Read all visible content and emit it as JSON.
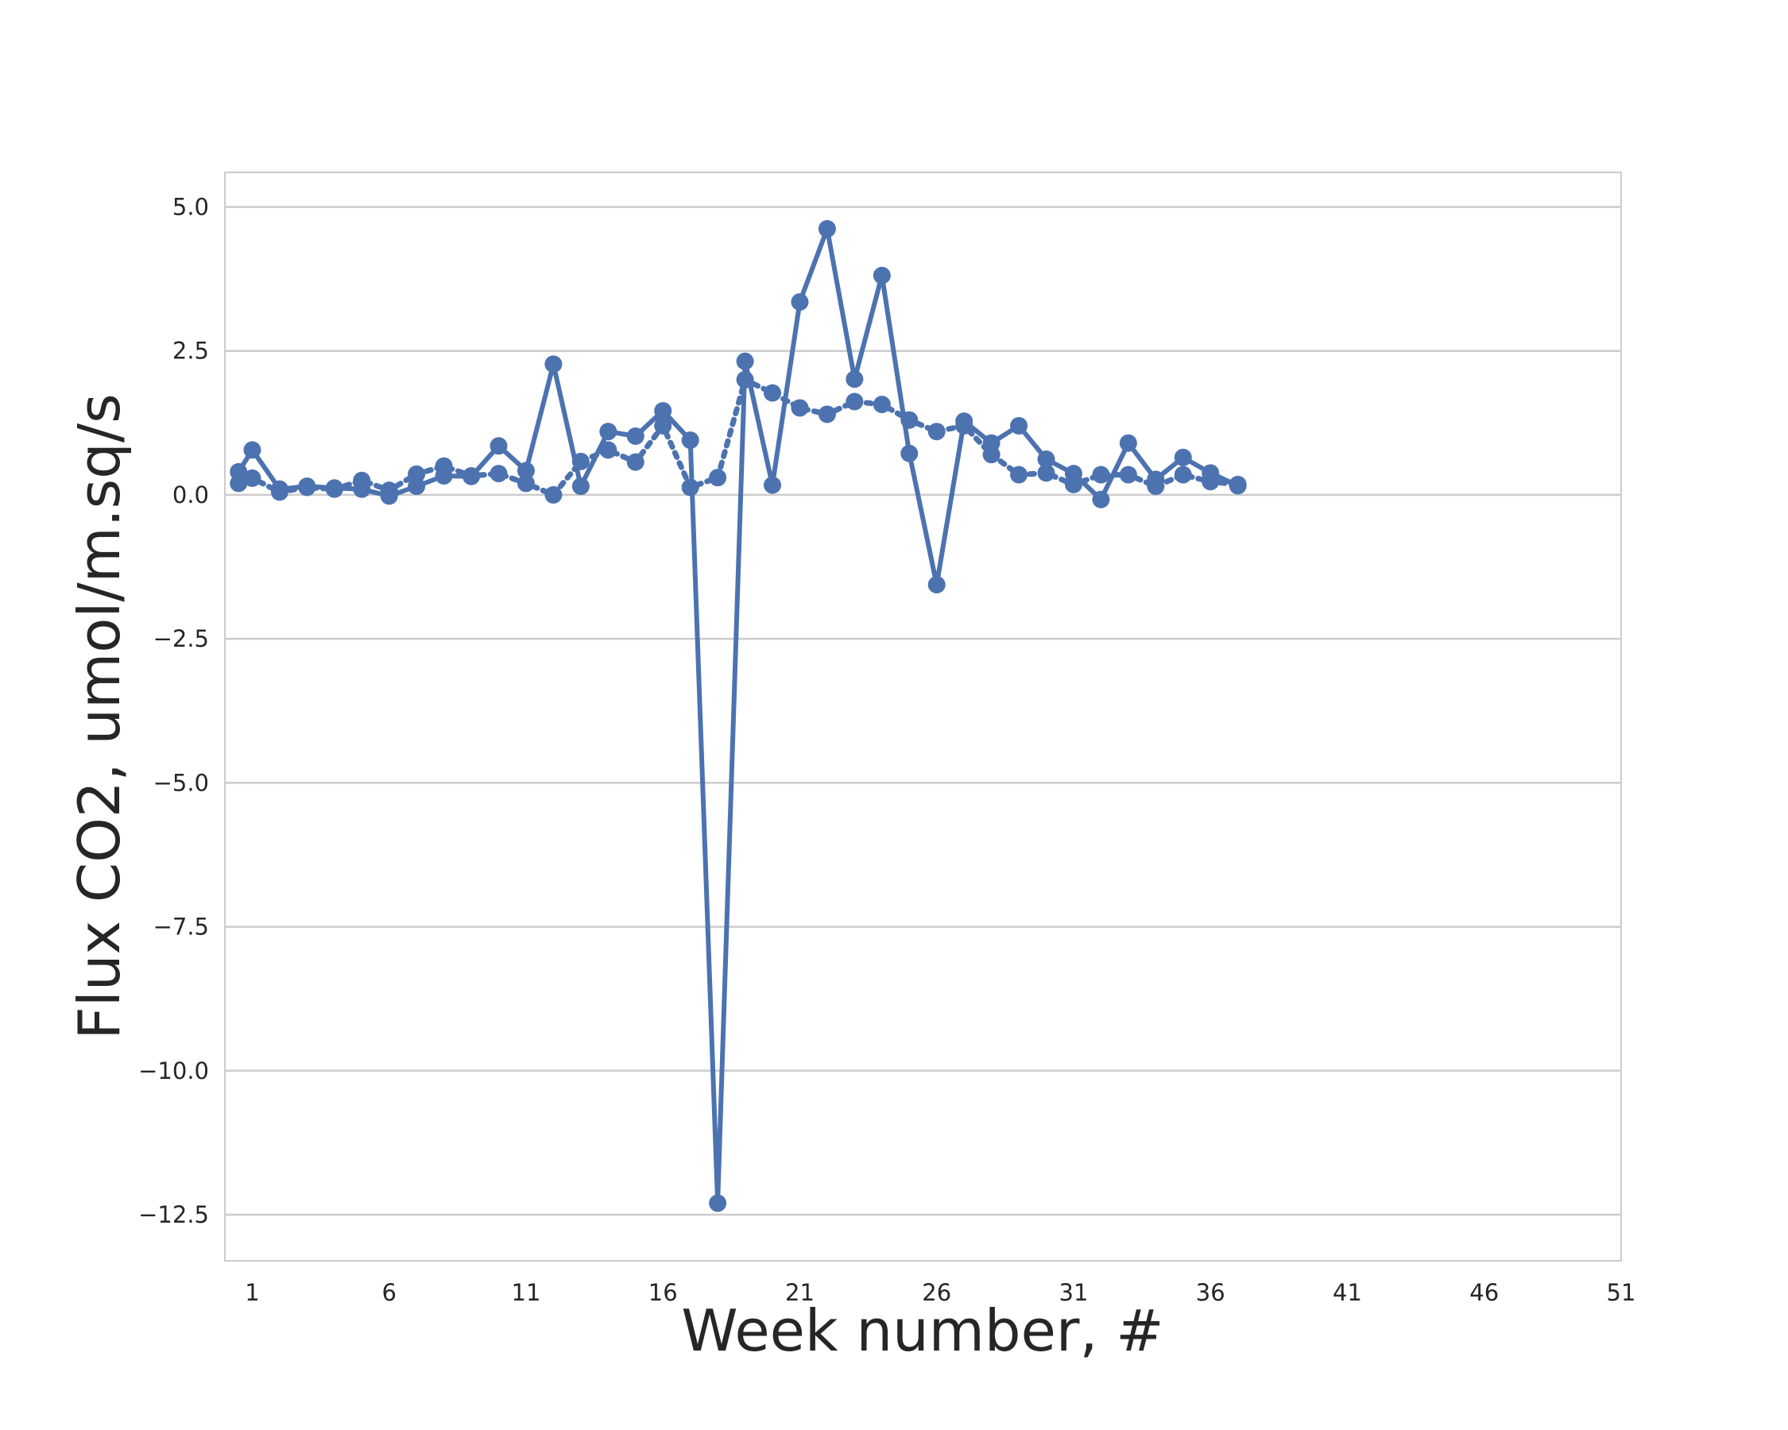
{
  "chart_data": {
    "type": "line",
    "title": "",
    "xlabel": "Week number, #",
    "ylabel": "Flux CO2, umol/m.sq/s",
    "xlim": [
      0,
      51
    ],
    "ylim": [
      -13.3,
      5.6
    ],
    "xticks": [
      1,
      6,
      11,
      16,
      21,
      26,
      31,
      36,
      41,
      46,
      51
    ],
    "xtick_labels": [
      "1",
      "6",
      "11",
      "16",
      "21",
      "26",
      "31",
      "36",
      "41",
      "46",
      "51"
    ],
    "yticks": [
      5.0,
      2.5,
      0.0,
      -2.5,
      -5.0,
      -7.5,
      -10.0,
      -12.5
    ],
    "ytick_labels": [
      "5.0",
      "2.5",
      "0.0",
      "−2.5",
      "−5.0",
      "−7.5",
      "−10.0",
      "−12.5"
    ],
    "grid": "horizontal",
    "legend": "none",
    "series": [
      {
        "style": "solid",
        "color": "#4c72b0",
        "x": [
          0.5,
          1,
          2,
          3,
          4,
          5,
          6,
          7,
          8,
          9,
          10,
          11,
          12,
          13,
          14,
          15,
          16,
          17,
          18,
          19,
          20,
          21,
          22,
          23,
          24,
          25,
          26,
          27,
          28,
          29,
          30,
          31,
          32,
          33,
          34,
          35,
          36,
          37
        ],
        "y": [
          0.4,
          0.78,
          0.1,
          0.15,
          0.12,
          0.1,
          -0.02,
          0.15,
          0.33,
          0.32,
          0.85,
          0.42,
          2.27,
          0.15,
          1.1,
          1.02,
          1.46,
          0.95,
          -12.3,
          2.32,
          0.17,
          3.35,
          4.62,
          2.01,
          3.81,
          0.72,
          -1.56,
          1.28,
          0.9,
          1.2,
          0.62,
          0.37,
          -0.08,
          0.9,
          0.27,
          0.65,
          0.38,
          0.16
        ]
      },
      {
        "style": "dotted",
        "color": "#4c72b0",
        "x": [
          0.5,
          1,
          2,
          3,
          4,
          5,
          6,
          7,
          8,
          9,
          10,
          11,
          12,
          13,
          14,
          15,
          16,
          17,
          18,
          19,
          20,
          21,
          22,
          23,
          24,
          25,
          26,
          27,
          28,
          29,
          30,
          31,
          32,
          33,
          34,
          35,
          36,
          37
        ],
        "y": [
          0.2,
          0.29,
          0.05,
          0.13,
          0.1,
          0.25,
          0.08,
          0.36,
          0.5,
          0.33,
          0.37,
          0.2,
          0.0,
          0.58,
          0.78,
          0.57,
          1.2,
          0.13,
          0.3,
          2.0,
          1.77,
          1.51,
          1.4,
          1.62,
          1.57,
          1.3,
          1.1,
          1.2,
          0.7,
          0.35,
          0.38,
          0.18,
          0.35,
          0.35,
          0.15,
          0.35,
          0.23,
          0.18
        ]
      }
    ]
  }
}
